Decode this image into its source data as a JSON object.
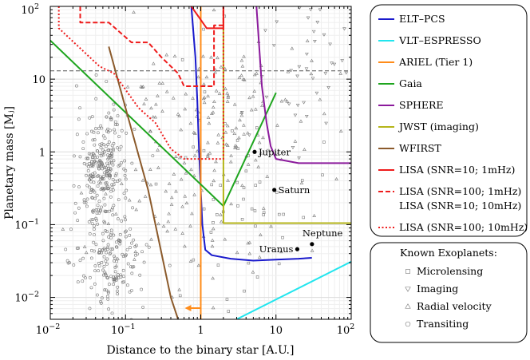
{
  "chart_data": {
    "type": "line",
    "xlabel": "Distance to the binary star [A.U.]",
    "ylabel": "Planetary mass [Mⱼ]",
    "xscale": "log",
    "yscale": "log",
    "xlim": [
      0.01,
      100
    ],
    "ylim": [
      0.005,
      100
    ],
    "grid": true,
    "x_ticks": [
      {
        "value": 0.01,
        "base": "10",
        "exp": "−2"
      },
      {
        "value": 0.1,
        "base": "10",
        "exp": "−1"
      },
      {
        "value": 1,
        "base": "1",
        "exp": ""
      },
      {
        "value": 10,
        "base": "10",
        "exp": ""
      },
      {
        "value": 100,
        "base": "10",
        "exp": "2"
      }
    ],
    "y_ticks": [
      {
        "value": 0.01,
        "base": "10",
        "exp": "−2"
      },
      {
        "value": 0.1,
        "base": "10",
        "exp": "−1"
      },
      {
        "value": 1,
        "base": "1",
        "exp": ""
      },
      {
        "value": 10,
        "base": "10",
        "exp": ""
      },
      {
        "value": 100,
        "base": "10",
        "exp": "2"
      }
    ],
    "reference_line_y": 13,
    "series": [
      {
        "name": "ELT–PCS",
        "color": "#1a1acc",
        "dash": "solid",
        "points": [
          [
            0.75,
            100
          ],
          [
            0.85,
            20
          ],
          [
            0.9,
            5
          ],
          [
            0.95,
            1
          ],
          [
            1.0,
            0.3
          ],
          [
            1.05,
            0.1
          ],
          [
            1.15,
            0.045
          ],
          [
            1.4,
            0.038
          ],
          [
            2.5,
            0.034
          ],
          [
            5,
            0.032
          ],
          [
            10,
            0.033
          ],
          [
            20,
            0.034
          ],
          [
            30,
            0.035
          ]
        ]
      },
      {
        "name": "VLT–ESPRESSO",
        "color": "#22e5ee",
        "dash": "solid",
        "points": [
          [
            3,
            0.005
          ],
          [
            100,
            0.031
          ]
        ]
      },
      {
        "name": "ARIEL (Tier 1)",
        "color": "#ff8c1a",
        "dash": "solid",
        "points": [
          [
            1.0,
            0.005
          ],
          [
            1.0,
            100
          ]
        ]
      },
      {
        "name": "Gaia",
        "color": "#1ea51e",
        "dash": "solid",
        "points": [
          [
            0.01,
            34
          ],
          [
            2.0,
            0.18
          ],
          [
            10,
            6.5
          ]
        ]
      },
      {
        "name": "SPHERE",
        "color": "#8b1a9c",
        "dash": "solid",
        "points": [
          [
            5.5,
            100
          ],
          [
            6.5,
            8
          ],
          [
            7.5,
            2.5
          ],
          [
            8.5,
            1.2
          ],
          [
            10,
            0.8
          ],
          [
            20,
            0.7
          ],
          [
            100,
            0.7
          ]
        ]
      },
      {
        "name": "JWST (imaging)",
        "color": "#b5b51a",
        "dash": "solid",
        "points": [
          [
            2.0,
            100
          ],
          [
            2.0,
            0.105
          ],
          [
            100,
            0.105
          ]
        ]
      },
      {
        "name": "WFIRST",
        "color": "#8b5a2b",
        "dash": "solid",
        "points": [
          [
            0.06,
            28
          ],
          [
            0.1,
            4
          ],
          [
            0.2,
            0.3
          ],
          [
            0.4,
            0.01
          ],
          [
            0.5,
            0.005
          ]
        ]
      },
      {
        "name": "LISA (SNR=10; 1mHz)",
        "color": "#ee1c1c",
        "dash": "solid",
        "points": [
          [
            0.75,
            100
          ],
          [
            1.2,
            50
          ],
          [
            2.0,
            50
          ],
          [
            2.0,
            100
          ]
        ]
      },
      {
        "name": "LISA (SNR=100; 1mHz)\nLISA (SNR=10; 10mHz)",
        "color": "#ee1c1c",
        "dash": "dashed",
        "points": [
          [
            0.025,
            100
          ],
          [
            0.025,
            60
          ],
          [
            0.06,
            60
          ],
          [
            0.12,
            32
          ],
          [
            0.2,
            32
          ],
          [
            0.3,
            20
          ],
          [
            0.5,
            12
          ],
          [
            0.6,
            8
          ],
          [
            1.5,
            8
          ],
          [
            1.5,
            55
          ],
          [
            2.0,
            55
          ],
          [
            2.0,
            100
          ]
        ]
      },
      {
        "name": "LISA (SNR=100; 10mHz)",
        "color": "#ee1c1c",
        "dash": "dotted",
        "points": [
          [
            0.013,
            100
          ],
          [
            0.013,
            50
          ],
          [
            0.045,
            15
          ],
          [
            0.07,
            12
          ],
          [
            0.15,
            4
          ],
          [
            0.25,
            2.5
          ],
          [
            0.4,
            1.1
          ],
          [
            0.6,
            0.8
          ],
          [
            2.0,
            0.8
          ],
          [
            2.0,
            100
          ]
        ]
      }
    ],
    "planets": [
      {
        "name": "Jupiter",
        "x": 5.2,
        "y": 1.0
      },
      {
        "name": "Saturn",
        "x": 9.5,
        "y": 0.3
      },
      {
        "name": "Uranus",
        "x": 19.2,
        "y": 0.046
      },
      {
        "name": "Neptune",
        "x": 30.1,
        "y": 0.054
      }
    ],
    "known_exoplanets": {
      "title": "Known Exoplanets:",
      "categories": [
        {
          "name": "Microlensing",
          "marker": "square"
        },
        {
          "name": "Imaging",
          "marker": "triangle-down"
        },
        {
          "name": "Radial velocity",
          "marker": "triangle-up"
        },
        {
          "name": "Transiting",
          "marker": "circle"
        }
      ]
    }
  }
}
